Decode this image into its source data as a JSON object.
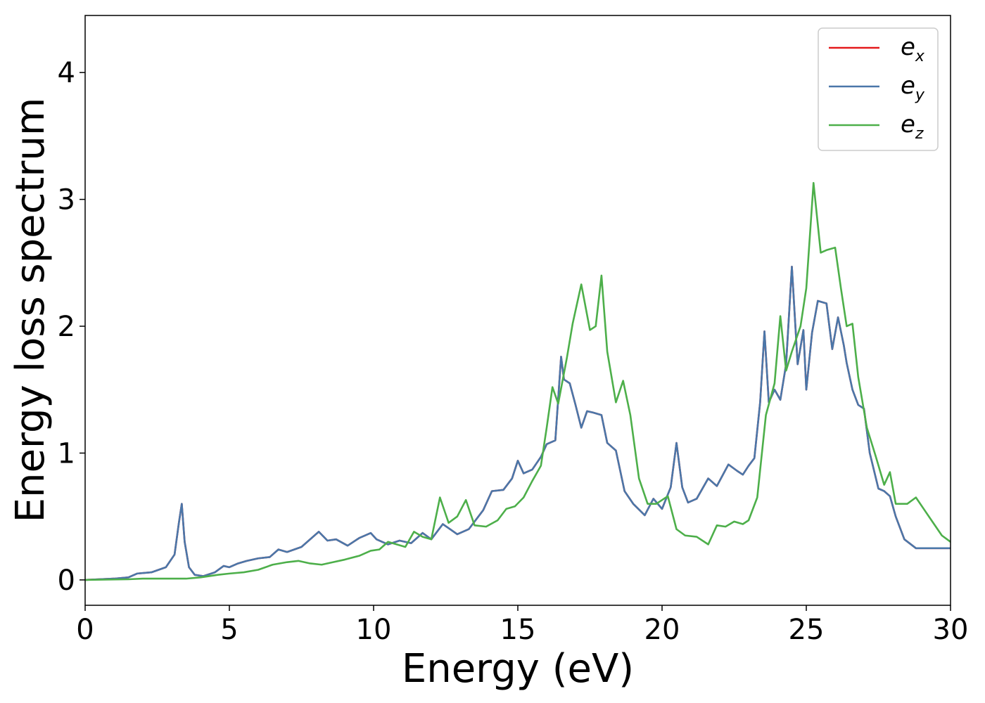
{
  "chart_data": {
    "type": "line",
    "xlabel": "Energy (eV)",
    "ylabel": "Energy loss spectrum",
    "xlim": [
      0,
      30
    ],
    "ylim": [
      -0.2,
      4.45
    ],
    "xticks": [
      0,
      5,
      10,
      15,
      20,
      25,
      30
    ],
    "yticks": [
      0,
      1,
      2,
      3,
      4
    ],
    "grid": false,
    "legend_position": "top-right",
    "series": [
      {
        "name": "e_x",
        "label_main": "e",
        "label_sub": "x",
        "color": "#e41a1c",
        "x": [
          0,
          1,
          1.5,
          1.8,
          2.3,
          2.8,
          3.1,
          3.25,
          3.35,
          3.45,
          3.6,
          3.8,
          4.1,
          4.5,
          4.8,
          5.0,
          5.3,
          5.6,
          6.0,
          6.4,
          6.7,
          7.0,
          7.5,
          8.1,
          8.4,
          8.7,
          9.1,
          9.5,
          9.9,
          10.1,
          10.5,
          10.9,
          11.3,
          11.7,
          12.0,
          12.4,
          12.9,
          13.3,
          13.8,
          14.1,
          14.5,
          14.8,
          15.0,
          15.2,
          15.5,
          15.8,
          16.0,
          16.3,
          16.5,
          16.6,
          16.8,
          17.0,
          17.2,
          17.4,
          17.6,
          17.9,
          18.1,
          18.4,
          18.7,
          19.0,
          19.4,
          19.7,
          20.0,
          20.3,
          20.5,
          20.7,
          20.9,
          21.2,
          21.6,
          21.9,
          22.3,
          22.6,
          22.8,
          23.0,
          23.2,
          23.4,
          23.55,
          23.7,
          23.9,
          24.1,
          24.3,
          24.5,
          24.7,
          24.9,
          25.0,
          25.2,
          25.4,
          25.7,
          25.9,
          26.1,
          26.3,
          26.4,
          26.6,
          26.8,
          27.0,
          27.2,
          27.5,
          27.7,
          27.9,
          28.1,
          28.4,
          28.8,
          29.2,
          29.6,
          30.0
        ],
        "y": [
          0,
          0.01,
          0.02,
          0.05,
          0.06,
          0.1,
          0.2,
          0.45,
          0.6,
          0.3,
          0.1,
          0.04,
          0.03,
          0.06,
          0.11,
          0.1,
          0.13,
          0.15,
          0.17,
          0.18,
          0.24,
          0.22,
          0.26,
          0.38,
          0.31,
          0.32,
          0.27,
          0.33,
          0.37,
          0.32,
          0.28,
          0.31,
          0.29,
          0.37,
          0.32,
          0.44,
          0.36,
          0.4,
          0.55,
          0.7,
          0.71,
          0.8,
          0.94,
          0.84,
          0.87,
          0.97,
          1.07,
          1.1,
          1.76,
          1.58,
          1.55,
          1.38,
          1.2,
          1.33,
          1.32,
          1.3,
          1.08,
          1.02,
          0.7,
          0.6,
          0.51,
          0.64,
          0.56,
          0.73,
          1.08,
          0.73,
          0.61,
          0.64,
          0.8,
          0.74,
          0.91,
          0.86,
          0.83,
          0.9,
          0.96,
          1.4,
          1.96,
          1.4,
          1.5,
          1.42,
          1.7,
          2.47,
          1.7,
          1.97,
          1.5,
          1.95,
          2.2,
          2.18,
          1.82,
          2.07,
          1.85,
          1.71,
          1.5,
          1.38,
          1.35,
          1.0,
          0.72,
          0.7,
          0.66,
          0.5,
          0.32,
          0.25,
          0.25,
          0.25,
          0.25
        ]
      },
      {
        "name": "e_y",
        "label_main": "e",
        "label_sub": "y",
        "color": "#4a77a9",
        "x": [
          0,
          1,
          1.5,
          1.8,
          2.3,
          2.8,
          3.1,
          3.25,
          3.35,
          3.45,
          3.6,
          3.8,
          4.1,
          4.5,
          4.8,
          5.0,
          5.3,
          5.6,
          6.0,
          6.4,
          6.7,
          7.0,
          7.5,
          8.1,
          8.4,
          8.7,
          9.1,
          9.5,
          9.9,
          10.1,
          10.5,
          10.9,
          11.3,
          11.7,
          12.0,
          12.4,
          12.9,
          13.3,
          13.8,
          14.1,
          14.5,
          14.8,
          15.0,
          15.2,
          15.5,
          15.8,
          16.0,
          16.3,
          16.5,
          16.6,
          16.8,
          17.0,
          17.2,
          17.4,
          17.6,
          17.9,
          18.1,
          18.4,
          18.7,
          19.0,
          19.4,
          19.7,
          20.0,
          20.3,
          20.5,
          20.7,
          20.9,
          21.2,
          21.6,
          21.9,
          22.3,
          22.6,
          22.8,
          23.0,
          23.2,
          23.4,
          23.55,
          23.7,
          23.9,
          24.1,
          24.3,
          24.5,
          24.7,
          24.9,
          25.0,
          25.2,
          25.4,
          25.7,
          25.9,
          26.1,
          26.3,
          26.4,
          26.6,
          26.8,
          27.0,
          27.2,
          27.5,
          27.7,
          27.9,
          28.1,
          28.4,
          28.8,
          29.2,
          29.6,
          30.0
        ],
        "y": [
          0,
          0.01,
          0.02,
          0.05,
          0.06,
          0.1,
          0.2,
          0.45,
          0.6,
          0.3,
          0.1,
          0.04,
          0.03,
          0.06,
          0.11,
          0.1,
          0.13,
          0.15,
          0.17,
          0.18,
          0.24,
          0.22,
          0.26,
          0.38,
          0.31,
          0.32,
          0.27,
          0.33,
          0.37,
          0.32,
          0.28,
          0.31,
          0.29,
          0.37,
          0.32,
          0.44,
          0.36,
          0.4,
          0.55,
          0.7,
          0.71,
          0.8,
          0.94,
          0.84,
          0.87,
          0.97,
          1.07,
          1.1,
          1.76,
          1.58,
          1.55,
          1.38,
          1.2,
          1.33,
          1.32,
          1.3,
          1.08,
          1.02,
          0.7,
          0.6,
          0.51,
          0.64,
          0.56,
          0.73,
          1.08,
          0.73,
          0.61,
          0.64,
          0.8,
          0.74,
          0.91,
          0.86,
          0.83,
          0.9,
          0.96,
          1.4,
          1.96,
          1.4,
          1.5,
          1.42,
          1.7,
          2.47,
          1.7,
          1.97,
          1.5,
          1.95,
          2.2,
          2.18,
          1.82,
          2.07,
          1.85,
          1.71,
          1.5,
          1.38,
          1.35,
          1.0,
          0.72,
          0.7,
          0.66,
          0.5,
          0.32,
          0.25,
          0.25,
          0.25,
          0.25
        ]
      },
      {
        "name": "e_z",
        "label_main": "e",
        "label_sub": "z",
        "color": "#4daf4a",
        "x": [
          0,
          1.5,
          2.0,
          3.0,
          3.5,
          4.0,
          4.6,
          5.0,
          5.5,
          6.0,
          6.5,
          7.0,
          7.4,
          7.8,
          8.2,
          8.6,
          9.0,
          9.5,
          9.9,
          10.2,
          10.5,
          10.8,
          11.1,
          11.4,
          11.7,
          12.0,
          12.3,
          12.6,
          12.9,
          13.2,
          13.5,
          13.9,
          14.3,
          14.6,
          14.9,
          15.2,
          15.5,
          15.8,
          16.0,
          16.2,
          16.4,
          16.7,
          16.9,
          17.2,
          17.5,
          17.7,
          17.9,
          18.1,
          18.4,
          18.65,
          18.9,
          19.2,
          19.5,
          19.8,
          20.2,
          20.5,
          20.8,
          21.2,
          21.6,
          21.9,
          22.2,
          22.5,
          22.8,
          23.0,
          23.3,
          23.6,
          23.9,
          24.1,
          24.3,
          24.5,
          24.8,
          25.0,
          25.25,
          25.5,
          25.7,
          26.0,
          26.2,
          26.4,
          26.6,
          26.8,
          27.1,
          27.4,
          27.7,
          27.9,
          28.1,
          28.5,
          28.8,
          29.1,
          29.4,
          29.7,
          30.0
        ],
        "y": [
          0,
          0.005,
          0.01,
          0.01,
          0.01,
          0.02,
          0.04,
          0.05,
          0.06,
          0.08,
          0.12,
          0.14,
          0.15,
          0.13,
          0.12,
          0.14,
          0.16,
          0.19,
          0.23,
          0.24,
          0.3,
          0.28,
          0.26,
          0.38,
          0.34,
          0.32,
          0.65,
          0.45,
          0.5,
          0.63,
          0.43,
          0.42,
          0.47,
          0.56,
          0.58,
          0.65,
          0.78,
          0.9,
          1.2,
          1.52,
          1.39,
          1.75,
          2.02,
          2.33,
          1.97,
          2.0,
          2.4,
          1.8,
          1.4,
          1.57,
          1.3,
          0.8,
          0.6,
          0.6,
          0.66,
          0.4,
          0.35,
          0.34,
          0.28,
          0.43,
          0.42,
          0.46,
          0.44,
          0.47,
          0.65,
          1.3,
          1.55,
          2.08,
          1.65,
          1.8,
          2.0,
          2.3,
          3.13,
          2.58,
          2.6,
          2.62,
          2.3,
          2.0,
          2.02,
          1.6,
          1.2,
          0.98,
          0.75,
          0.85,
          0.6,
          0.6,
          0.65,
          0.55,
          0.45,
          0.35,
          0.3
        ]
      }
    ]
  }
}
